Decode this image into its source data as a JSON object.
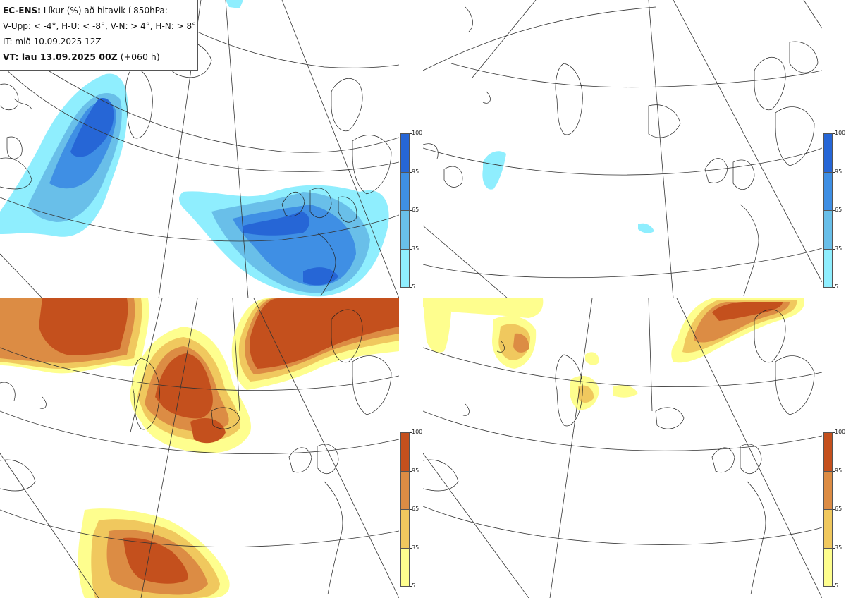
{
  "legend": {
    "line1_bold": "EC-ENS:",
    "line1_rest": "Líkur (%) að hitavik í 850hPa:",
    "line2": "V-Upp: < -4°, H-U: < -8°, V-N: > 4°, H-N: > 8°",
    "line3": "IT: mið 10.09.2025 12Z",
    "line4_bold": "VT: lau 13.09.2025 00Z",
    "line4_rest": "(+060 h)"
  },
  "colorbars": {
    "cold": {
      "labels": [
        "100",
        "95",
        "65",
        "35",
        "5"
      ],
      "colors": [
        "#2666d6",
        "#3f8fe4",
        "#69bfe9",
        "#8feefe"
      ]
    },
    "warm": {
      "labels": [
        "100",
        "95",
        "65",
        "35",
        "5"
      ],
      "colors": [
        "#c4501d",
        "#dc8c44",
        "#f0c85e",
        "#fefe8e"
      ]
    }
  },
  "panels": [
    {
      "id": "V-Upp",
      "palette": "cold"
    },
    {
      "id": "H-U",
      "palette": "cold"
    },
    {
      "id": "V-N",
      "palette": "warm"
    },
    {
      "id": "H-N",
      "palette": "warm"
    }
  ]
}
